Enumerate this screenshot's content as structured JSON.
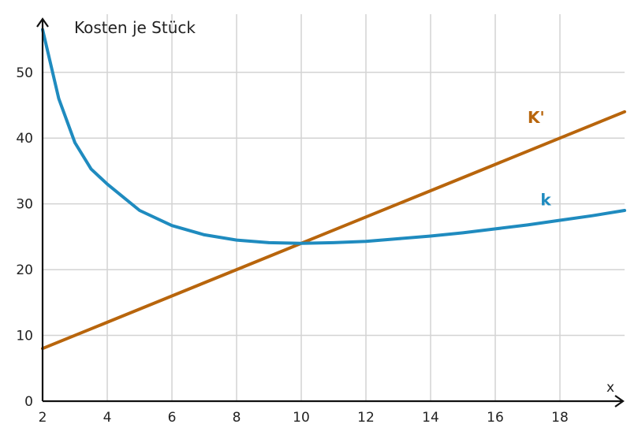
{
  "chart_data": {
    "type": "line",
    "title": "Kosten je Stück",
    "xlabel": "x",
    "ylabel": "",
    "xlim": [
      2,
      20
    ],
    "ylim": [
      0,
      58
    ],
    "x_ticks": [
      2,
      4,
      6,
      8,
      10,
      12,
      14,
      16,
      18
    ],
    "y_ticks": [
      0,
      10,
      20,
      30,
      40,
      50
    ],
    "grid": true,
    "series": [
      {
        "name": "K'",
        "color": "#b8650c",
        "x": [
          2,
          4,
          6,
          8,
          10,
          12,
          14,
          16,
          18,
          20
        ],
        "y": [
          8,
          12,
          16,
          20,
          24,
          28,
          32,
          36,
          40,
          44
        ]
      },
      {
        "name": "k",
        "color": "#1f8bbf",
        "x": [
          2,
          2.5,
          3,
          3.5,
          4,
          5,
          6,
          7,
          8,
          9,
          10,
          11,
          12,
          13,
          14,
          15,
          16,
          17,
          18,
          19,
          20
        ],
        "y": [
          56.5,
          46.0,
          39.3,
          35.3,
          33.0,
          29.0,
          26.7,
          25.3,
          24.5,
          24.1,
          24.0,
          24.1,
          24.3,
          24.7,
          25.1,
          25.6,
          26.2,
          26.8,
          27.5,
          28.2,
          29.0
        ]
      }
    ]
  }
}
